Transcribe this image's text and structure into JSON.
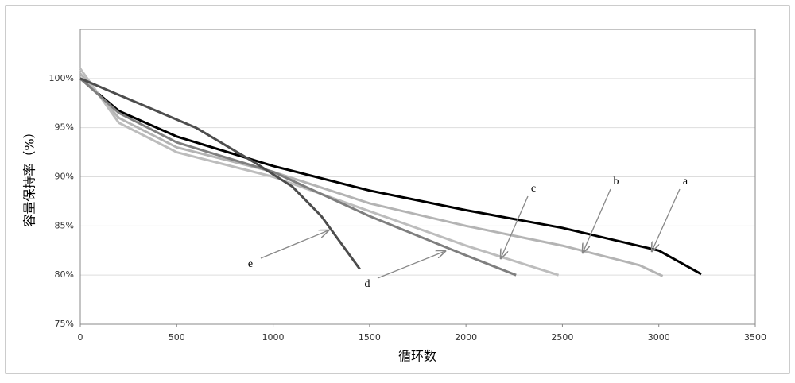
{
  "chart_data": {
    "type": "line",
    "xlabel": "循环数",
    "ylabel": "容量保持率（%）",
    "xlim": [
      0,
      3500
    ],
    "xticks": [
      0,
      500,
      1000,
      1500,
      2000,
      2500,
      3000,
      3500
    ],
    "ylim": [
      75,
      105
    ],
    "yticks": [
      {
        "value": 75,
        "label": "75%"
      },
      {
        "value": 80,
        "label": "80%"
      },
      {
        "value": 85,
        "label": "85%"
      },
      {
        "value": 90,
        "label": "90%"
      },
      {
        "value": 95,
        "label": "95%"
      },
      {
        "value": 100,
        "label": "100%"
      }
    ],
    "grid": true,
    "series": [
      {
        "name": "a",
        "color": "#000000",
        "x": [
          0,
          200,
          500,
          1000,
          1500,
          2000,
          2500,
          3000,
          3220
        ],
        "values": [
          100,
          96.7,
          94.1,
          91.1,
          88.6,
          86.6,
          84.8,
          82.5,
          80.1
        ]
      },
      {
        "name": "b",
        "color": "#b4b4b4",
        "x": [
          0,
          200,
          500,
          1000,
          1500,
          2000,
          2500,
          2900,
          3020
        ],
        "values": [
          100.5,
          96,
          93,
          90.5,
          87.3,
          85,
          83,
          81,
          79.9
        ]
      },
      {
        "name": "c",
        "color": "#bdbdbd",
        "x": [
          0,
          200,
          500,
          1000,
          1500,
          2000,
          2480
        ],
        "values": [
          101,
          95.5,
          92.5,
          90,
          86.5,
          83,
          80
        ]
      },
      {
        "name": "d",
        "color": "#7f7f7f",
        "x": [
          0,
          200,
          500,
          1000,
          1500,
          2000,
          2260
        ],
        "values": [
          100,
          96.5,
          93.5,
          90.5,
          86,
          82,
          80
        ]
      },
      {
        "name": "e",
        "color": "#4d4d4d",
        "x": [
          0,
          300,
          600,
          900,
          1100,
          1250,
          1450
        ],
        "values": [
          100,
          97.5,
          95,
          91.5,
          89,
          86,
          80.6
        ]
      }
    ]
  }
}
